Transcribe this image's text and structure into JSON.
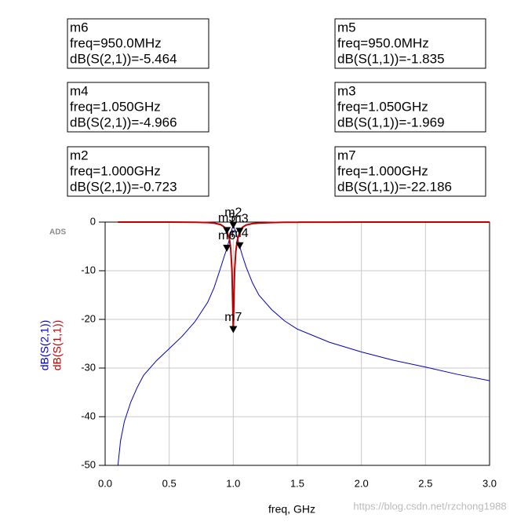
{
  "chart_data": {
    "type": "line",
    "watermark_tag": "ADS",
    "xlabel": "freq, GHz",
    "watermark": "https://blog.csdn.net/rzchong1988",
    "x": [
      0.1,
      0.12,
      0.15,
      0.2,
      0.25,
      0.3,
      0.4,
      0.5,
      0.6,
      0.7,
      0.8,
      0.85,
      0.9,
      0.93,
      0.95,
      0.97,
      0.98,
      0.99,
      1.0,
      1.01,
      1.02,
      1.03,
      1.05,
      1.07,
      1.1,
      1.15,
      1.2,
      1.3,
      1.4,
      1.5,
      1.75,
      2.0,
      2.25,
      2.5,
      2.75,
      3.0
    ],
    "series": [
      {
        "name": "dB(S(2,1))",
        "color": "#0000c0",
        "values": [
          -50,
          -45,
          -41,
          -37,
          -34,
          -31.5,
          -28.5,
          -26,
          -23.5,
          -20.5,
          -16.5,
          -13.5,
          -9.5,
          -7,
          -5.464,
          -3.5,
          -2.5,
          -1.4,
          -0.723,
          -1.3,
          -2.2,
          -3.0,
          -4.966,
          -6.8,
          -9.2,
          -12.5,
          -15,
          -18,
          -20.3,
          -22,
          -24.7,
          -26.7,
          -28.4,
          -29.8,
          -31.3,
          -32.6
        ]
      },
      {
        "name": "dB(S(1,1))",
        "color": "#c00000",
        "values": [
          0,
          0,
          0,
          0,
          0,
          0,
          -0.01,
          -0.01,
          -0.02,
          -0.04,
          -0.1,
          -0.2,
          -0.5,
          -1.0,
          -1.835,
          -3.5,
          -5.5,
          -10,
          -22.186,
          -10,
          -6,
          -4,
          -1.969,
          -1.1,
          -0.6,
          -0.3,
          -0.2,
          -0.1,
          -0.05,
          -0.03,
          -0.02,
          -0.01,
          -0.01,
          -0.01,
          -0.01,
          -0.01
        ]
      }
    ],
    "xlim": [
      0,
      3
    ],
    "ylim": [
      -50,
      0
    ],
    "xticks": [
      {
        "value": 0,
        "label": "0.0"
      },
      {
        "value": 0.5,
        "label": "0.5"
      },
      {
        "value": 1,
        "label": "1.0"
      },
      {
        "value": 1.5,
        "label": "1.5"
      },
      {
        "value": 2,
        "label": "2.0"
      },
      {
        "value": 2.5,
        "label": "2.5"
      },
      {
        "value": 3,
        "label": "3.0"
      }
    ],
    "yticks": [
      0,
      -10,
      -20,
      -30,
      -40,
      -50
    ],
    "grid": true,
    "markers": [
      {
        "name": "m6",
        "x": 0.95,
        "y": -5.464,
        "freq_label": "freq=950.0MHz",
        "value_label": "dB(S(2,1))=-5.464"
      },
      {
        "name": "m5",
        "x": 0.95,
        "y": -1.835,
        "freq_label": "freq=950.0MHz",
        "value_label": "dB(S(1,1))=-1.835"
      },
      {
        "name": "m4",
        "x": 1.05,
        "y": -4.966,
        "freq_label": "freq=1.050GHz",
        "value_label": "dB(S(2,1))=-4.966"
      },
      {
        "name": "m3",
        "x": 1.05,
        "y": -1.969,
        "freq_label": "freq=1.050GHz",
        "value_label": "dB(S(1,1))=-1.969"
      },
      {
        "name": "m2",
        "x": 1.0,
        "y": -0.723,
        "freq_label": "freq=1.000GHz",
        "value_label": "dB(S(2,1))=-0.723"
      },
      {
        "name": "m7",
        "x": 1.0,
        "y": -22.186,
        "freq_label": "freq=1.000GHz",
        "value_label": "dB(S(1,1))=-22.186"
      }
    ]
  }
}
